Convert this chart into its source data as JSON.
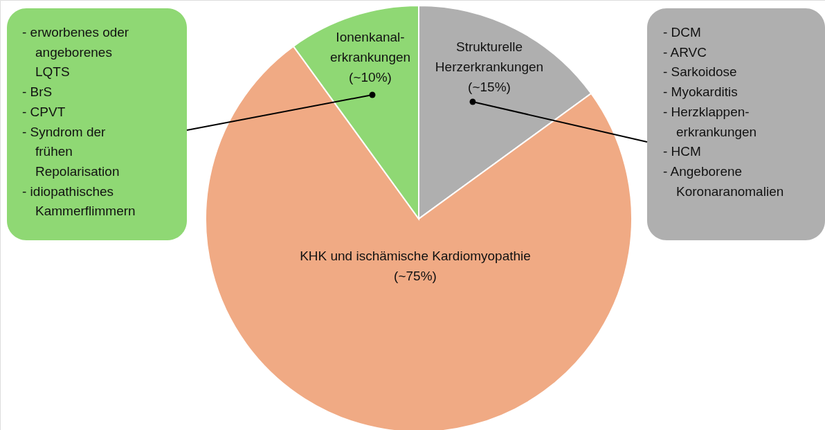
{
  "chart_data": {
    "type": "pie",
    "categories": [
      "Strukturelle\nHerzerkrankungen",
      "KHK und ischämische Kardiomyopathie",
      "Ionenkanal-\nerkrankungen"
    ],
    "values": [
      15,
      75,
      10
    ],
    "value_labels": [
      "(~15%)",
      "(~75%)",
      "(~10%)"
    ],
    "colors": [
      "#afafaf",
      "#f0aa84",
      "#8fd874"
    ],
    "annotations": [
      "- erworbenes oder\nangeborenes\nLQTS",
      "- BrS",
      "- CPVT",
      "- Syndrom der\nfrühen\nRepolarisation",
      "- idiopathisches\nKammerflimmern",
      "- DCM",
      "- ARVC",
      "- Sarkoidose",
      "- Myokarditis",
      "- Herzklappen-\nerkrankungen",
      "- HCM",
      "- Angeborene\nKoronaranomalien"
    ]
  }
}
